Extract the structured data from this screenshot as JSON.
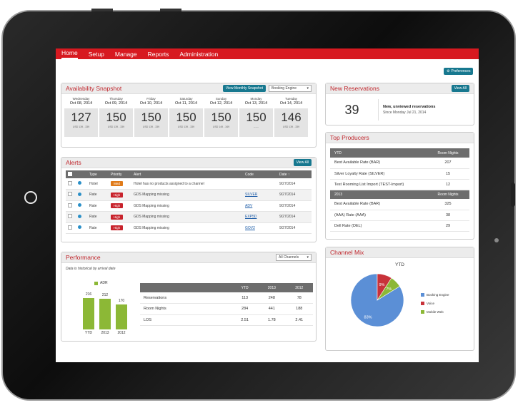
{
  "nav": {
    "home": "Home",
    "setup": "Setup",
    "manage": "Manage",
    "reports": "Reports",
    "administration": "Administration"
  },
  "preferences_label": "Preferences",
  "availability": {
    "title": "Availability Snapshot",
    "view_button": "View Monthly Snapshot",
    "select": "Booking Engine",
    "days": [
      {
        "dow": "Wednesday",
        "date": "Oct 08, 2014",
        "value": "127",
        "sub": "USD 139 - 339"
      },
      {
        "dow": "Thursday",
        "date": "Oct 09, 2014",
        "value": "150",
        "sub": "USD 139 - 339"
      },
      {
        "dow": "Friday",
        "date": "Oct 10, 2014",
        "value": "150",
        "sub": "USD 139 - 339"
      },
      {
        "dow": "Saturday",
        "date": "Oct 11, 2014",
        "value": "150",
        "sub": "USD 139 - 339"
      },
      {
        "dow": "Sunday",
        "date": "Oct 12, 2014",
        "value": "150",
        "sub": "USD 149 - 349"
      },
      {
        "dow": "Monday",
        "date": "Oct 13, 2014",
        "value": "150",
        "sub": "------"
      },
      {
        "dow": "Tuesday",
        "date": "Oct 14, 2014",
        "value": "146",
        "sub": "USD 139 - 339"
      }
    ]
  },
  "new_reservations": {
    "title": "New Reservations",
    "view_all": "View All",
    "count": "39",
    "label": "New, unviewed reservations",
    "since": "Since Monday Jul 21, 2014"
  },
  "alerts": {
    "title": "Alerts",
    "view_all": "View All",
    "headers": {
      "type": "Type",
      "priority": "Priority",
      "alert": "Alert",
      "code": "Code",
      "date": "Date ↑"
    },
    "rows": [
      {
        "type": "Hotel",
        "priority": "Med",
        "alert": "Hotel has no products assigned to a channel",
        "code": "",
        "date": "9/27/2014"
      },
      {
        "type": "Rate",
        "priority": "High",
        "alert": "GDS Mapping missing",
        "code": "SILVER",
        "date": "9/27/2014"
      },
      {
        "type": "Rate",
        "priority": "High",
        "alert": "GDS Mapping missing",
        "code": "ADV",
        "date": "9/27/2014"
      },
      {
        "type": "Rate",
        "priority": "High",
        "alert": "GDS Mapping missing",
        "code": "EXP5D",
        "date": "9/27/2014"
      },
      {
        "type": "Rate",
        "priority": "High",
        "alert": "GDS Mapping missing",
        "code": "GOV2",
        "date": "9/27/2014"
      }
    ],
    "colors": {
      "Med": "#e07b1a",
      "High": "#c8232c"
    }
  },
  "top_producers": {
    "title": "Top Producers",
    "groups": [
      {
        "header": "YTD",
        "rn_header": "Room Nights",
        "rows": [
          {
            "name": "Best Available Rate (BAR)",
            "rn": "207"
          },
          {
            "name": "Silver Loyalty Rate (SILVER)",
            "rn": "15"
          },
          {
            "name": "Test Rooming List Import (TEST-Import)",
            "rn": "12"
          }
        ]
      },
      {
        "header": "2013",
        "rn_header": "Room Nights",
        "rows": [
          {
            "name": "Best Available Rate (BAR)",
            "rn": "325"
          },
          {
            "name": "(AAA) Rate (AAA)",
            "rn": "38"
          },
          {
            "name": "Dell Rate (DEL)",
            "rn": "29"
          }
        ]
      }
    ]
  },
  "performance": {
    "title": "Performance",
    "select": "All Channels",
    "note": "Data is historical by arrival date",
    "legend": "ADR",
    "bar_color": "#8cb836",
    "bars": [
      {
        "label": "YTD",
        "value": 216
      },
      {
        "label": "2013",
        "value": 212
      },
      {
        "label": "2012",
        "value": 170
      }
    ],
    "table": {
      "headers": [
        "YTD",
        "2013",
        "2012"
      ],
      "rows": [
        {
          "label": "Reservations",
          "values": [
            "113",
            "248",
            "78"
          ]
        },
        {
          "label": "Room Nights",
          "values": [
            "284",
            "441",
            "188"
          ]
        },
        {
          "label": "LOS",
          "values": [
            "2.51",
            "1.78",
            "2.41"
          ]
        }
      ]
    }
  },
  "channel_mix": {
    "title": "Channel Mix",
    "chart_title": "YTD",
    "slices": [
      {
        "name": "Booking Engine",
        "value": 83,
        "label": "83%",
        "color": "#5b8fd6"
      },
      {
        "name": "Voice",
        "value": 9,
        "label": "9%",
        "color": "#c8323a"
      },
      {
        "name": "Mobile Web",
        "value": 7,
        "label": "7%",
        "color": "#8cb836"
      }
    ]
  },
  "chart_data": [
    {
      "type": "bar",
      "title": "",
      "categories": [
        "YTD",
        "2013",
        "2012"
      ],
      "series": [
        {
          "name": "ADR",
          "values": [
            216,
            212,
            170
          ]
        }
      ]
    },
    {
      "type": "pie",
      "title": "YTD",
      "labels": [
        "Booking Engine",
        "Voice",
        "Mobile Web"
      ],
      "values": [
        83,
        9,
        7
      ]
    }
  ]
}
